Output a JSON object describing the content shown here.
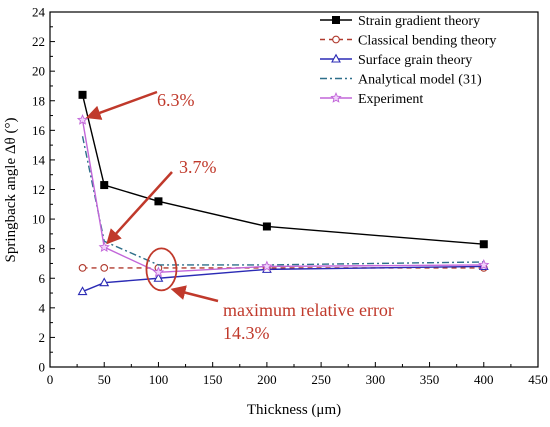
{
  "chart_data": {
    "type": "line",
    "xlabel": "Thickness  (μm)",
    "ylabel": "Springback angle Δθ (°)",
    "xlim": [
      0,
      450
    ],
    "ylim": [
      0,
      24
    ],
    "xticks": [
      0,
      50,
      100,
      150,
      200,
      250,
      300,
      350,
      400,
      450
    ],
    "yticks": [
      0,
      2,
      4,
      6,
      8,
      10,
      12,
      14,
      16,
      18,
      20,
      22,
      24
    ],
    "x": [
      30,
      50,
      100,
      200,
      400
    ],
    "legend_position": "top-right",
    "series": [
      {
        "name": "Strain gradient theory",
        "values": [
          18.4,
          12.3,
          11.2,
          9.5,
          8.3
        ],
        "color": "#000000",
        "marker": "filled-square",
        "dash": "solid"
      },
      {
        "name": "Classical bending theory",
        "values": [
          6.7,
          6.7,
          6.7,
          6.7,
          6.7
        ],
        "color": "#b03a2e",
        "marker": "open-circle",
        "dash": "dashed"
      },
      {
        "name": "Surface grain theory",
        "values": [
          5.1,
          5.7,
          6.0,
          6.6,
          6.8
        ],
        "color": "#2b2bb5",
        "marker": "open-triangle",
        "dash": "solid"
      },
      {
        "name": "Analytical model (31)",
        "values": [
          15.6,
          8.5,
          6.9,
          6.9,
          7.1
        ],
        "color": "#2e6f8a",
        "marker": "none",
        "dash": "dashdot"
      },
      {
        "name": "Experiment",
        "values": [
          16.7,
          8.1,
          6.4,
          6.8,
          6.9
        ],
        "color": "#c266d9",
        "marker": "star",
        "dash": "solid"
      }
    ],
    "annotations": [
      {
        "text": "6.3%",
        "color": "#c0392b"
      },
      {
        "text": "3.7%",
        "color": "#c0392b"
      },
      {
        "text": "maximum relative error",
        "color": "#c0392b"
      },
      {
        "text": "14.3%",
        "color": "#c0392b"
      }
    ]
  }
}
